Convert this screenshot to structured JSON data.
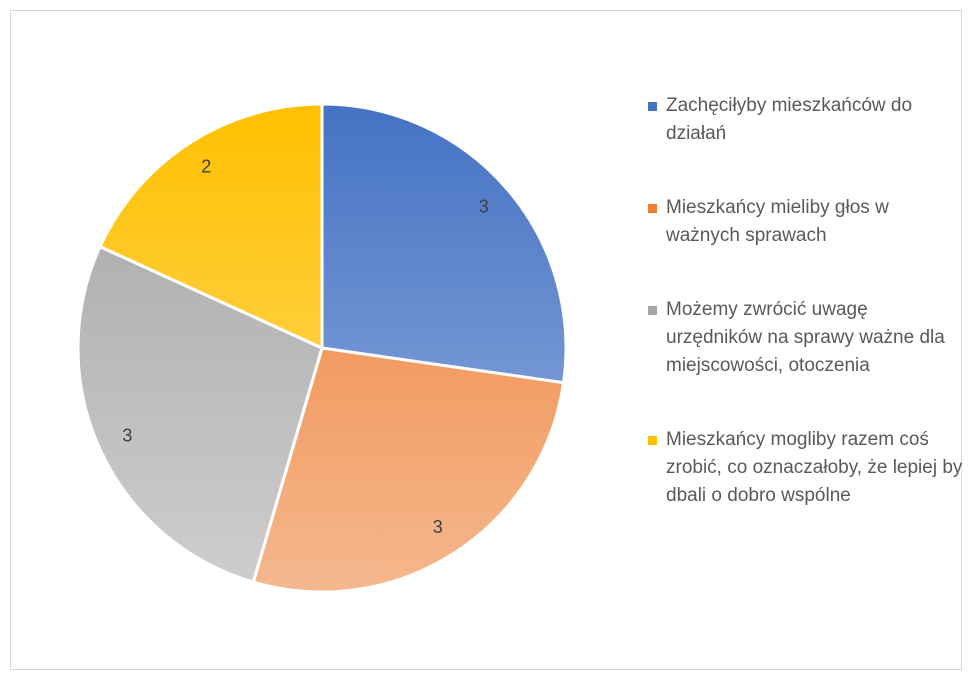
{
  "chart_data": {
    "type": "pie",
    "categories": [
      "Zachęciłyby mieszkańców do działań",
      "Mieszkańcy mieliby głos w ważnych sprawach",
      "Możemy zwrócić uwagę urzędników na sprawy ważne dla miejscowości, otoczenia",
      "Mieszkańcy mogliby razem coś zrobić, co oznaczałoby, że lepiej by dbali o dobro wspólne"
    ],
    "values": [
      3,
      3,
      3,
      2
    ],
    "colors": [
      "#4472c4",
      "#ed7d31",
      "#a5a5a5",
      "#ffc000"
    ],
    "legend": "right"
  }
}
